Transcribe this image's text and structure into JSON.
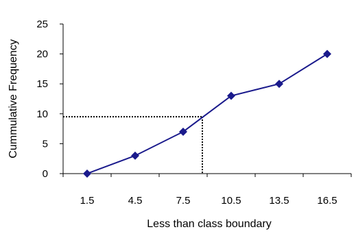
{
  "chart_data": {
    "type": "line",
    "title": "",
    "xlabel": "Less than class boundary",
    "ylabel": "Cummulative Frequency",
    "categories": [
      "1.5",
      "4.5",
      "7.5",
      "10.5",
      "13.5",
      "16.5"
    ],
    "series": [
      {
        "values": [
          0,
          3,
          7,
          13,
          15,
          20
        ],
        "color": "#1a1a8c",
        "marker": "diamond"
      }
    ],
    "ylim": [
      0,
      25
    ],
    "yticks": [
      0,
      5,
      10,
      15,
      20,
      25
    ],
    "grid": false,
    "legend": "none",
    "reference_lines": {
      "y_value": 9.5,
      "x_value": 8.7,
      "style": "dotted",
      "color": "#000000"
    },
    "axis_color": "#000000"
  }
}
